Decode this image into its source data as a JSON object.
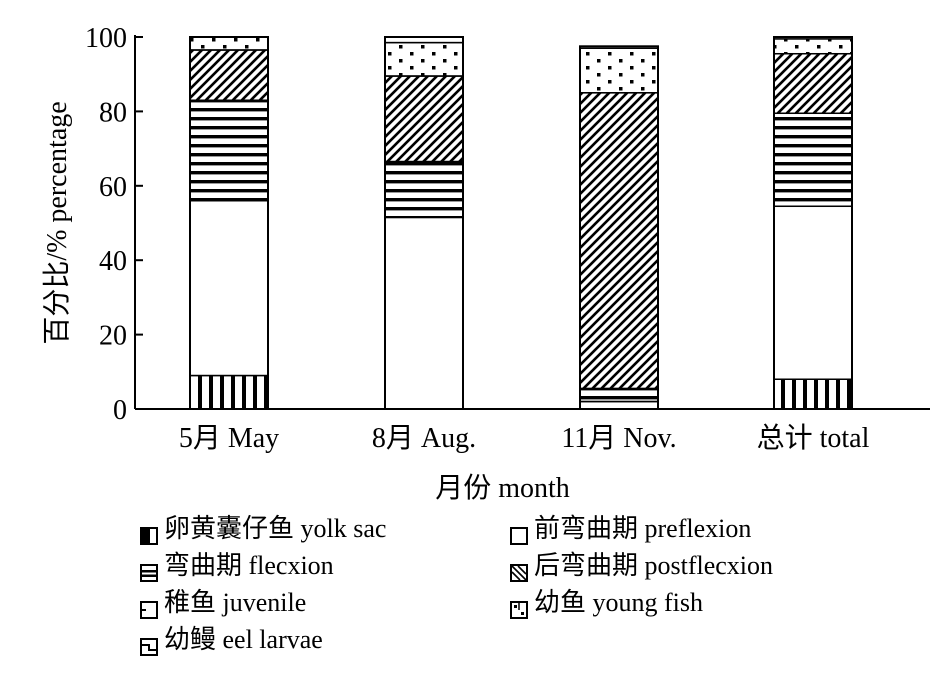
{
  "chart_data": {
    "type": "bar",
    "stacked": true,
    "ylabel": "百分比/% percentage",
    "xlabel": "月份 month",
    "ylim": [
      0,
      100
    ],
    "yticks": [
      0,
      20,
      40,
      60,
      80,
      100
    ],
    "grid": false,
    "legend_position": "bottom",
    "categories": [
      "5月 May",
      "8月 Aug.",
      "11月 Nov.",
      "总计 total"
    ],
    "series": [
      {
        "name": "卵黄囊仔鱼 yolk sac",
        "pattern": "vertical-lines",
        "values": [
          9.0,
          0.0,
          0.0,
          8.0
        ]
      },
      {
        "name": "前弯曲期 preflexion",
        "pattern": "blank",
        "values": [
          47.0,
          51.5,
          2.0,
          46.5
        ]
      },
      {
        "name": "弯曲期 flecxion",
        "pattern": "horizontal-lines",
        "values": [
          27.0,
          15.0,
          3.5,
          25.0
        ]
      },
      {
        "name": "后弯曲期 postflecxion",
        "pattern": "diagonal-hatch",
        "values": [
          13.5,
          23.0,
          79.5,
          16.0
        ]
      },
      {
        "name": "稚鱼 juvenile",
        "pattern": "blank",
        "values": [
          0.0,
          0.0,
          0.0,
          0.0
        ]
      },
      {
        "name": "幼鱼 young fish",
        "pattern": "dots",
        "values": [
          3.5,
          9.0,
          12.0,
          4.0
        ]
      },
      {
        "name": "幼鳗 eel larvae",
        "pattern": "blank",
        "values": [
          0.0,
          1.5,
          0.5,
          0.5
        ]
      }
    ]
  },
  "legend_layout": [
    {
      "series": 0,
      "swatch": "half-filled"
    },
    {
      "series": 1,
      "swatch": "empty"
    },
    {
      "series": 2,
      "swatch": "horizontal-lines"
    },
    {
      "series": 3,
      "swatch": "diagonal-hatch"
    },
    {
      "series": 4,
      "swatch": "corner-tick"
    },
    {
      "series": 5,
      "swatch": "dots"
    },
    {
      "series": 6,
      "swatch": "step"
    }
  ]
}
